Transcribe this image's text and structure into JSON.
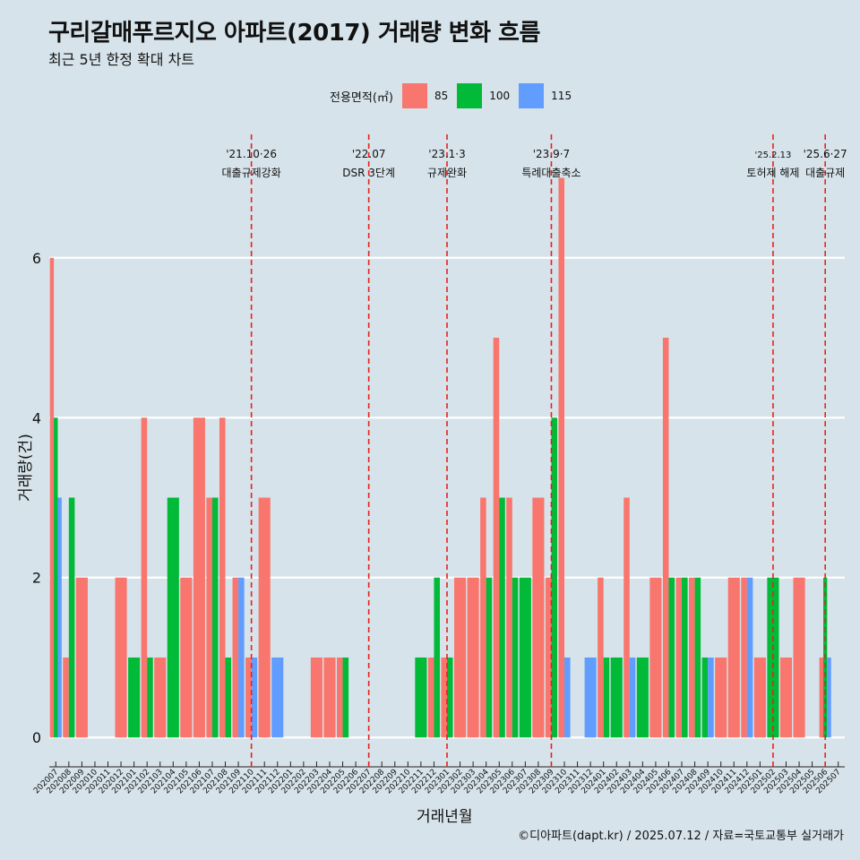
{
  "title": "구리갈매푸르지오 아파트(2017) 거래량 변화 흐름",
  "subtitle": "최근 5년 한정 확대 차트",
  "caption": "©디아파트(dapt.kr) / 2025.07.12 / 자료=국토교통부 실거래가",
  "legend": {
    "title": "전용면적(㎡)",
    "items": [
      {
        "label": "85",
        "color": "#f8766d"
      },
      {
        "label": "100",
        "color": "#00ba38"
      },
      {
        "label": "115",
        "color": "#619cff"
      }
    ]
  },
  "chart_data": {
    "type": "bar",
    "xlabel": "거래년월",
    "ylabel": "거래량(건)",
    "ylim": [
      -0.3,
      7.6
    ],
    "yticks": [
      0,
      2,
      4,
      6
    ],
    "grid": "horizontal",
    "legend_position": "top",
    "categories": [
      "202007",
      "202008",
      "202009",
      "202010",
      "202011",
      "202012",
      "202101",
      "202102",
      "202103",
      "202104",
      "202105",
      "202106",
      "202107",
      "202108",
      "202109",
      "202110",
      "202111",
      "202112",
      "202201",
      "202202",
      "202203",
      "202204",
      "202205",
      "202206",
      "202207",
      "202208",
      "202209",
      "202210",
      "202211",
      "202212",
      "202301",
      "202302",
      "202303",
      "202304",
      "202305",
      "202306",
      "202307",
      "202308",
      "202309",
      "202310",
      "202311",
      "202312",
      "202401",
      "202402",
      "202403",
      "202404",
      "202405",
      "202406",
      "202407",
      "202408",
      "202409",
      "202410",
      "202411",
      "202412",
      "202501",
      "202502",
      "202503",
      "202504",
      "202505",
      "202506",
      "202507"
    ],
    "series": [
      {
        "name": "85",
        "color": "#f8766d",
        "values": [
          6,
          1,
          2,
          0,
          0,
          2,
          0,
          4,
          1,
          0,
          2,
          4,
          3,
          4,
          2,
          1,
          3,
          0,
          0,
          0,
          1,
          1,
          1,
          0,
          0,
          0,
          0,
          0,
          0,
          1,
          1,
          2,
          2,
          3,
          5,
          3,
          0,
          3,
          2,
          7,
          0,
          0,
          2,
          0,
          3,
          0,
          2,
          5,
          2,
          2,
          0,
          1,
          2,
          2,
          1,
          0,
          1,
          2,
          0,
          1,
          0
        ]
      },
      {
        "name": "100",
        "color": "#00ba38",
        "values": [
          4,
          3,
          0,
          0,
          0,
          0,
          1,
          1,
          0,
          3,
          0,
          0,
          3,
          1,
          0,
          0,
          0,
          0,
          0,
          0,
          0,
          0,
          1,
          0,
          0,
          0,
          0,
          0,
          1,
          2,
          1,
          0,
          0,
          2,
          3,
          2,
          2,
          0,
          4,
          0,
          0,
          0,
          1,
          1,
          0,
          1,
          0,
          2,
          2,
          2,
          1,
          0,
          0,
          0,
          0,
          2,
          0,
          0,
          0,
          2,
          0
        ]
      },
      {
        "name": "115",
        "color": "#619cff",
        "values": [
          3,
          0,
          0,
          0,
          0,
          0,
          0,
          0,
          0,
          0,
          0,
          0,
          0,
          0,
          2,
          1,
          0,
          1,
          0,
          0,
          0,
          0,
          0,
          0,
          0,
          0,
          0,
          0,
          0,
          0,
          0,
          0,
          0,
          0,
          0,
          0,
          0,
          0,
          0,
          1,
          0,
          1,
          0,
          0,
          1,
          0,
          0,
          0,
          0,
          0,
          1,
          0,
          0,
          2,
          0,
          0,
          0,
          0,
          0,
          1,
          0
        ]
      }
    ],
    "annotations": [
      {
        "date": "'21.10·26",
        "label": "대출규제강화",
        "at": "202110"
      },
      {
        "date": "'22.07",
        "label": "DSR 3단계",
        "at": "202207"
      },
      {
        "date": "'23.1·3",
        "label": "규제완화",
        "at": "202301"
      },
      {
        "date": "'23.9·7",
        "label": "특례대출축소",
        "at": "202309"
      },
      {
        "date": "'25.2.13",
        "label": "토허제 해제",
        "at": "202502"
      },
      {
        "date": "'25.6·27",
        "label": "대출규제",
        "at": "202506"
      }
    ]
  }
}
